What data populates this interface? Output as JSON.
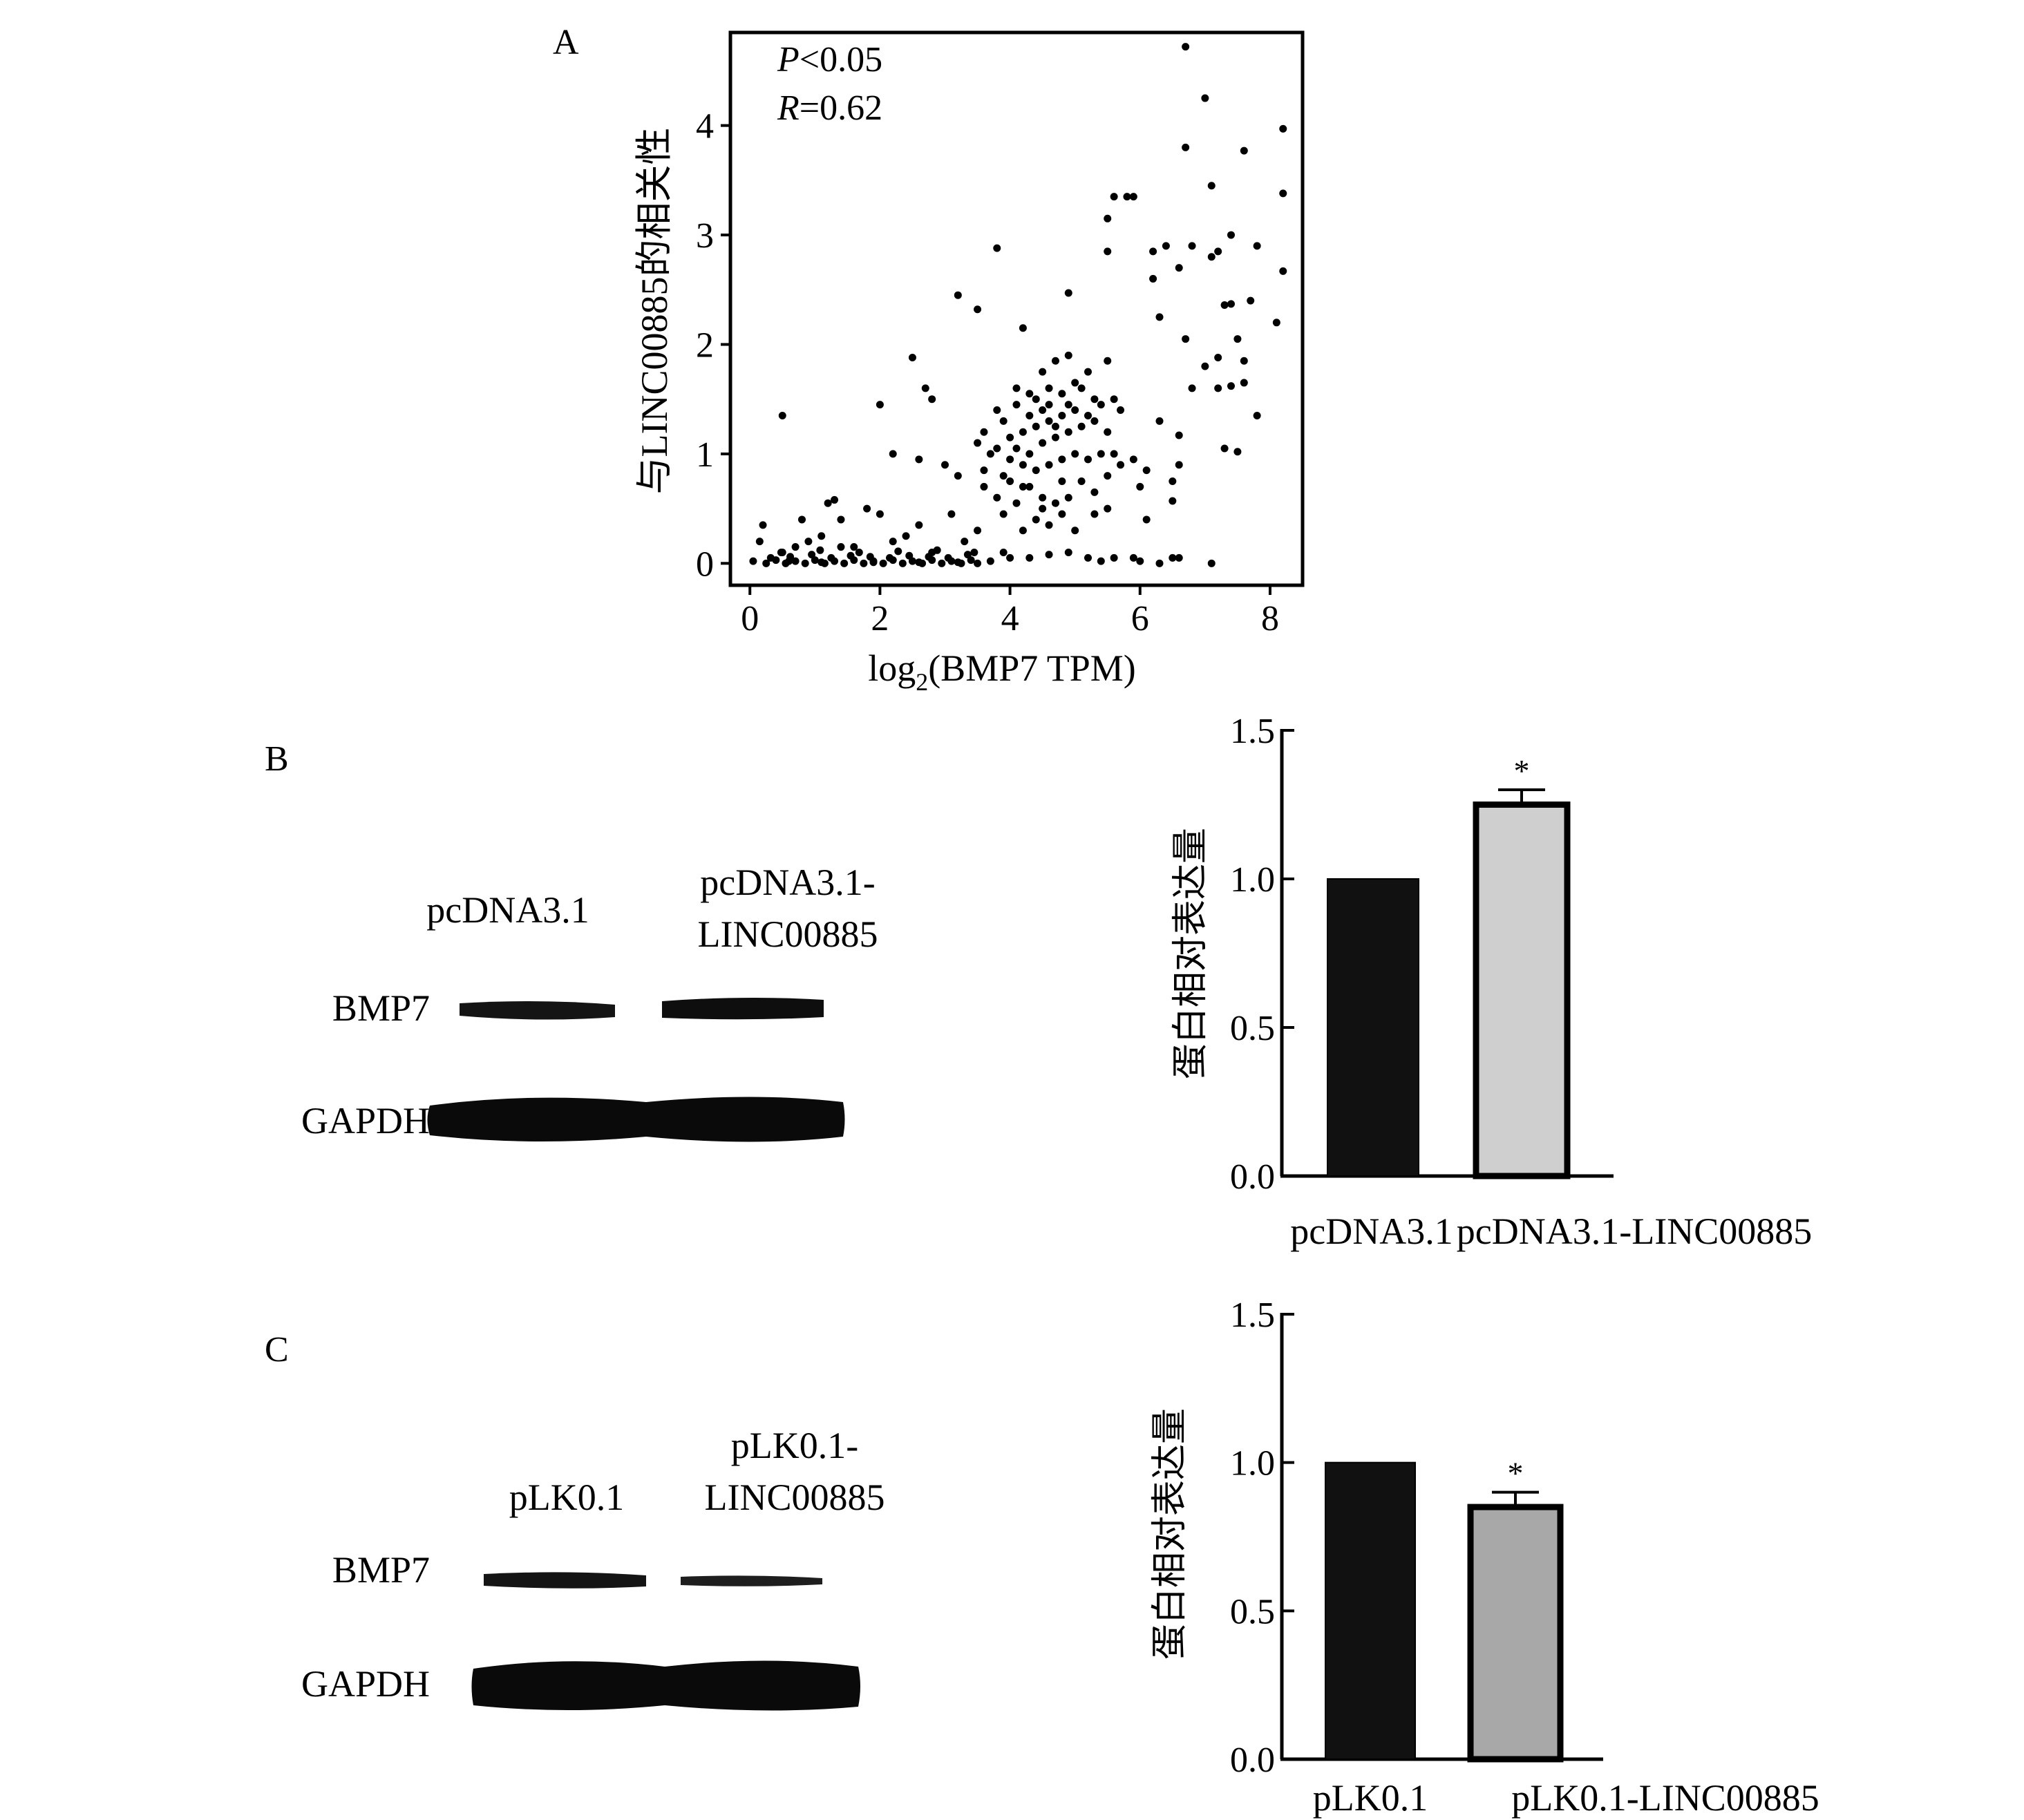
{
  "panels": {
    "A": {
      "letter": "A",
      "annotation_p_symbol": "P",
      "annotation_p_value": "<0.05",
      "annotation_r_symbol": "R",
      "annotation_r_value": "=0.62"
    },
    "B": {
      "letter": "B",
      "lane_labels": [
        [
          "pcDNA3.1"
        ],
        [
          "pcDNA3.1-",
          "LINC00885"
        ]
      ],
      "row_labels": [
        "BMP7",
        "GAPDH"
      ],
      "band_colors": {
        "band": "#111111",
        "background": "#ffffff"
      }
    },
    "C": {
      "letter": "C",
      "lane_labels": [
        [
          "pLK0.1"
        ],
        [
          "pLK0.1-",
          "LINC00885"
        ]
      ],
      "row_labels": [
        "BMP7",
        "GAPDH"
      ]
    }
  },
  "chart_data": [
    {
      "id": "A",
      "type": "scatter",
      "xlabel_prefix": "log",
      "xlabel_subscript": "2",
      "xlabel_suffix": "(BMP7 TPM)",
      "ylabel": "与LINC00885的相关性",
      "xlim": [
        -0.3,
        8.5
      ],
      "ylim": [
        -0.2,
        4.85
      ],
      "xticks": [
        0,
        2,
        4,
        6,
        8
      ],
      "yticks": [
        0,
        1,
        2,
        3,
        4
      ],
      "grid": false,
      "point_color": "#000000",
      "points": [
        [
          6.7,
          4.72
        ],
        [
          7.0,
          4.25
        ],
        [
          8.2,
          3.97
        ],
        [
          6.7,
          3.8
        ],
        [
          7.6,
          3.77
        ],
        [
          7.1,
          3.45
        ],
        [
          8.2,
          3.38
        ],
        [
          5.6,
          3.35
        ],
        [
          5.8,
          3.35
        ],
        [
          5.9,
          3.35
        ],
        [
          5.5,
          3.15
        ],
        [
          6.4,
          2.9
        ],
        [
          6.8,
          2.9
        ],
        [
          7.4,
          3.0
        ],
        [
          7.8,
          2.9
        ],
        [
          7.1,
          2.8
        ],
        [
          3.8,
          2.88
        ],
        [
          5.5,
          2.85
        ],
        [
          6.2,
          2.85
        ],
        [
          7.2,
          2.85
        ],
        [
          6.2,
          2.6
        ],
        [
          8.2,
          2.67
        ],
        [
          6.6,
          2.7
        ],
        [
          7.3,
          2.36
        ],
        [
          7.4,
          2.37
        ],
        [
          7.7,
          2.4
        ],
        [
          3.2,
          2.45
        ],
        [
          3.5,
          2.32
        ],
        [
          4.9,
          2.47
        ],
        [
          6.3,
          2.25
        ],
        [
          8.1,
          2.2
        ],
        [
          6.7,
          2.05
        ],
        [
          7.5,
          2.05
        ],
        [
          4.2,
          2.15
        ],
        [
          2.0,
          1.45
        ],
        [
          2.5,
          1.88
        ],
        [
          2.7,
          1.6
        ],
        [
          2.8,
          1.5
        ],
        [
          5.2,
          1.75
        ],
        [
          5.5,
          1.85
        ],
        [
          7.2,
          1.88
        ],
        [
          7.0,
          1.8
        ],
        [
          7.6,
          1.85
        ],
        [
          6.8,
          1.6
        ],
        [
          7.2,
          1.6
        ],
        [
          7.4,
          1.62
        ],
        [
          7.6,
          1.65
        ],
        [
          7.8,
          1.35
        ],
        [
          6.6,
          1.17
        ],
        [
          7.3,
          1.05
        ],
        [
          7.5,
          1.02
        ],
        [
          6.3,
          1.3
        ],
        [
          6.6,
          0.9
        ],
        [
          6.5,
          0.75
        ],
        [
          6.1,
          0.85
        ],
        [
          5.9,
          0.95
        ],
        [
          6.0,
          0.7
        ],
        [
          6.5,
          0.57
        ],
        [
          6.1,
          0.4
        ],
        [
          6.6,
          0.05
        ],
        [
          7.1,
          0.0
        ],
        [
          6.3,
          0.0
        ],
        [
          6.5,
          0.05
        ],
        [
          6.0,
          0.02
        ],
        [
          5.9,
          0.05
        ],
        [
          5.6,
          0.05
        ],
        [
          0.5,
          1.35
        ],
        [
          2.2,
          1.0
        ],
        [
          2.6,
          0.95
        ],
        [
          3.0,
          0.9
        ],
        [
          3.2,
          0.8
        ],
        [
          3.6,
          0.85
        ],
        [
          3.9,
          0.8
        ],
        [
          4.2,
          0.7
        ],
        [
          3.8,
          0.6
        ],
        [
          4.1,
          0.55
        ],
        [
          4.5,
          0.5
        ],
        [
          5.0,
          0.3
        ],
        [
          4.6,
          0.35
        ],
        [
          4.2,
          0.3
        ],
        [
          3.9,
          0.1
        ],
        [
          4.0,
          0.05
        ],
        [
          4.3,
          0.05
        ],
        [
          4.6,
          0.08
        ],
        [
          4.9,
          0.1
        ],
        [
          5.2,
          0.05
        ],
        [
          5.4,
          0.02
        ],
        [
          3.7,
          0.02
        ],
        [
          3.5,
          0.3
        ],
        [
          3.3,
          0.2
        ],
        [
          3.1,
          0.45
        ],
        [
          2.6,
          0.35
        ],
        [
          2.4,
          0.25
        ],
        [
          2.2,
          0.2
        ],
        [
          2.0,
          0.45
        ],
        [
          1.8,
          0.5
        ],
        [
          1.3,
          0.58
        ],
        [
          1.2,
          0.55
        ],
        [
          1.4,
          0.4
        ],
        [
          1.1,
          0.25
        ],
        [
          0.9,
          0.2
        ],
        [
          0.7,
          0.15
        ],
        [
          0.5,
          0.1
        ],
        [
          0.2,
          0.35
        ],
        [
          0.15,
          0.2
        ],
        [
          0.8,
          0.4
        ],
        [
          1.6,
          0.15
        ],
        [
          2.8,
          0.1
        ],
        [
          4.1,
          1.45
        ],
        [
          4.3,
          1.55
        ],
        [
          4.5,
          1.75
        ],
        [
          4.7,
          1.85
        ],
        [
          4.9,
          1.9
        ],
        [
          5.1,
          1.6
        ],
        [
          5.3,
          1.5
        ],
        [
          5.0,
          1.4
        ],
        [
          4.8,
          1.35
        ],
        [
          4.6,
          1.3
        ],
        [
          4.4,
          1.25
        ],
        [
          4.2,
          1.2
        ],
        [
          4.0,
          1.15
        ],
        [
          3.9,
          1.3
        ],
        [
          3.8,
          1.05
        ],
        [
          4.3,
          1.0
        ],
        [
          4.5,
          1.1
        ],
        [
          4.7,
          1.15
        ],
        [
          4.9,
          1.2
        ],
        [
          5.1,
          1.25
        ],
        [
          5.3,
          1.3
        ],
        [
          5.5,
          1.2
        ],
        [
          5.4,
          1.0
        ],
        [
          5.2,
          0.95
        ],
        [
          5.0,
          1.0
        ],
        [
          4.8,
          0.95
        ],
        [
          4.6,
          0.9
        ],
        [
          4.4,
          0.85
        ],
        [
          4.2,
          0.9
        ],
        [
          4.0,
          0.95
        ],
        [
          3.7,
          1.0
        ],
        [
          3.6,
          1.2
        ],
        [
          3.5,
          1.1
        ],
        [
          4.1,
          1.6
        ],
        [
          4.6,
          1.6
        ],
        [
          5.0,
          1.65
        ],
        [
          5.6,
          1.5
        ],
        [
          5.7,
          1.4
        ],
        [
          5.6,
          1.0
        ],
        [
          5.7,
          0.9
        ],
        [
          4.8,
          0.75
        ],
        [
          4.3,
          0.7
        ],
        [
          4.5,
          0.6
        ],
        [
          4.7,
          0.55
        ],
        [
          4.9,
          0.6
        ],
        [
          5.1,
          0.75
        ],
        [
          5.3,
          0.65
        ],
        [
          3.9,
          0.45
        ],
        [
          4.4,
          0.4
        ],
        [
          4.8,
          0.45
        ],
        [
          5.3,
          0.45
        ],
        [
          5.5,
          0.5
        ],
        [
          4.6,
          1.45
        ],
        [
          4.8,
          1.55
        ],
        [
          4.4,
          1.5
        ],
        [
          4.9,
          1.45
        ],
        [
          4.5,
          1.4
        ],
        [
          4.7,
          1.25
        ],
        [
          4.3,
          1.35
        ],
        [
          5.2,
          1.35
        ],
        [
          5.4,
          1.45
        ],
        [
          4.1,
          1.05
        ],
        [
          3.8,
          1.4
        ],
        [
          4.0,
          0.75
        ],
        [
          3.6,
          0.7
        ],
        [
          5.5,
          0.8
        ]
      ],
      "baseline_points": [
        [
          0.05,
          0.02
        ],
        [
          0.25,
          0.0
        ],
        [
          0.4,
          0.03
        ],
        [
          0.55,
          0.0
        ],
        [
          0.7,
          0.02
        ],
        [
          0.85,
          0.0
        ],
        [
          1.0,
          0.03
        ],
        [
          1.15,
          0.0
        ],
        [
          1.3,
          0.02
        ],
        [
          1.45,
          0.0
        ],
        [
          1.6,
          0.03
        ],
        [
          1.75,
          0.0
        ],
        [
          1.9,
          0.02
        ],
        [
          2.05,
          0.0
        ],
        [
          2.2,
          0.03
        ],
        [
          2.35,
          0.0
        ],
        [
          2.5,
          0.02
        ],
        [
          2.65,
          0.0
        ],
        [
          2.8,
          0.03
        ],
        [
          2.95,
          0.0
        ],
        [
          3.1,
          0.02
        ],
        [
          3.25,
          0.0
        ],
        [
          3.4,
          0.03
        ],
        [
          3.5,
          0.0
        ],
        [
          0.32,
          0.05
        ],
        [
          0.62,
          0.06
        ],
        [
          0.95,
          0.08
        ],
        [
          1.25,
          0.05
        ],
        [
          1.55,
          0.07
        ],
        [
          1.85,
          0.06
        ],
        [
          2.15,
          0.05
        ],
        [
          2.45,
          0.07
        ],
        [
          2.75,
          0.06
        ],
        [
          3.05,
          0.05
        ],
        [
          3.35,
          0.08
        ],
        [
          0.48,
          0.1
        ],
        [
          1.08,
          0.12
        ],
        [
          1.68,
          0.1
        ],
        [
          2.28,
          0.11
        ],
        [
          2.88,
          0.12
        ],
        [
          3.45,
          0.1
        ],
        [
          1.4,
          0.15
        ],
        [
          0.6,
          0.02
        ],
        [
          1.1,
          0.01
        ],
        [
          1.9,
          0.01
        ],
        [
          2.6,
          0.01
        ],
        [
          3.2,
          0.01
        ]
      ]
    },
    {
      "id": "B",
      "type": "bar",
      "categories": [
        "pcDNA3.1",
        "pcDNA3.1-LINC00885"
      ],
      "values": [
        1.0,
        1.25
      ],
      "errors": [
        0.0,
        0.05
      ],
      "significance": [
        "",
        "*"
      ],
      "bar_colors": [
        "#111111",
        "#cfcfcf"
      ],
      "ylabel": "蛋白相对表达量",
      "ylim": [
        0,
        1.5
      ],
      "yticks": [
        "0.0",
        "0.5",
        "1.0",
        "1.5"
      ]
    },
    {
      "id": "C",
      "type": "bar",
      "categories": [
        "pLK0.1",
        "pLK0.1-LINC00885"
      ],
      "values": [
        1.0,
        0.85
      ],
      "errors": [
        0.0,
        0.05
      ],
      "significance": [
        "",
        "*"
      ],
      "bar_colors": [
        "#111111",
        "#a8a8a8"
      ],
      "ylabel": "蛋白相对表达量",
      "ylim": [
        0,
        1.5
      ],
      "yticks": [
        "0.0",
        "0.5",
        "1.0",
        "1.5"
      ]
    }
  ]
}
